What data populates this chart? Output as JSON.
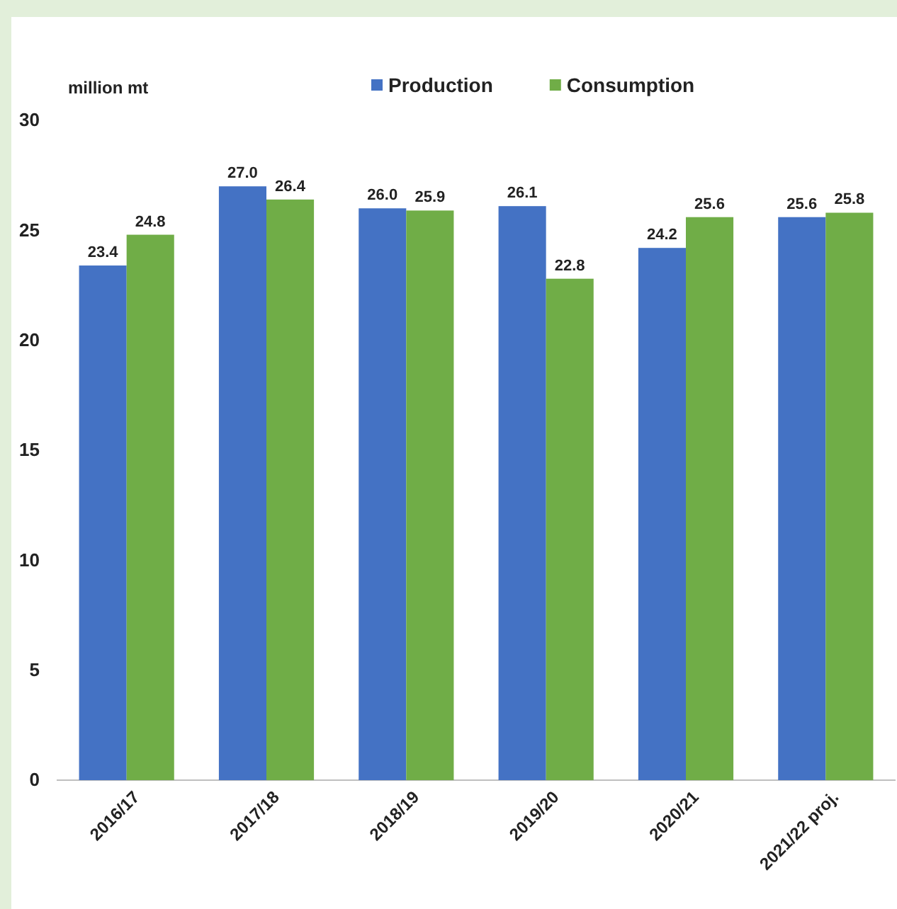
{
  "chart_data": {
    "type": "bar",
    "ylabel": "million mt",
    "categories": [
      "2016/17",
      "2017/18",
      "2018/19",
      "2019/20",
      "2020/21",
      "2021/22 proj."
    ],
    "series": [
      {
        "name": "Production",
        "color": "#4472c4",
        "values": [
          23.4,
          27.0,
          26.0,
          26.1,
          24.2,
          25.6
        ],
        "value_labels": [
          "23.4",
          "27.0",
          "26.0",
          "26.1",
          "24.2",
          "25.6"
        ]
      },
      {
        "name": "Consumption",
        "color": "#70ad47",
        "values": [
          24.8,
          26.4,
          25.9,
          22.8,
          25.6,
          25.8
        ],
        "value_labels": [
          "24.8",
          "26.4",
          "25.9",
          "22.8",
          "25.6",
          "25.8"
        ]
      }
    ],
    "ylim": [
      0,
      30
    ],
    "yticks": [
      0,
      5,
      10,
      15,
      20,
      25,
      30
    ],
    "grid": false,
    "legend": "top"
  }
}
